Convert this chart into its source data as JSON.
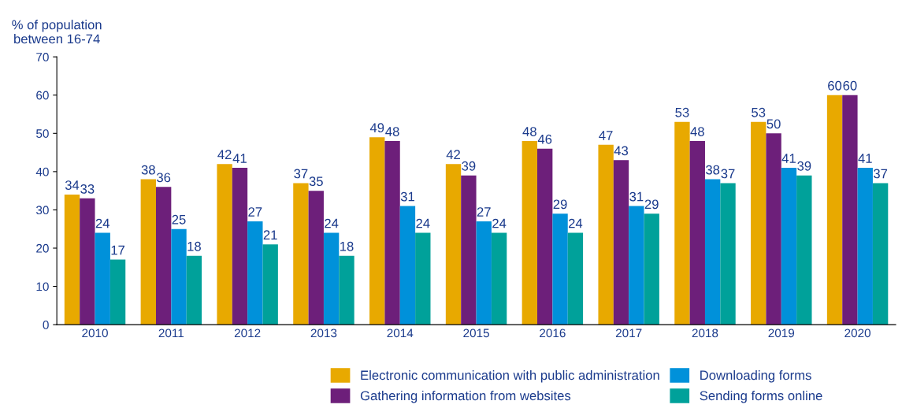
{
  "chart_data": {
    "type": "bar",
    "ylabel": "% of population\nbetween 16-74",
    "categories": [
      "2010",
      "2011",
      "2012",
      "2013",
      "2014",
      "2015",
      "2016",
      "2017",
      "2018",
      "2019",
      "2020"
    ],
    "series": [
      {
        "name": "Electronic communication with public administration",
        "color": "#e8a900",
        "values": [
          34,
          38,
          42,
          37,
          49,
          42,
          48,
          47,
          53,
          53,
          60
        ]
      },
      {
        "name": "Gathering information from websites",
        "color": "#6d1f7a",
        "values": [
          33,
          36,
          41,
          35,
          48,
          39,
          46,
          43,
          48,
          50,
          60
        ]
      },
      {
        "name": "Downloading forms",
        "color": "#0091da",
        "values": [
          24,
          25,
          27,
          24,
          31,
          27,
          29,
          31,
          38,
          41,
          41
        ]
      },
      {
        "name": "Sending forms online",
        "color": "#00a19a",
        "values": [
          17,
          18,
          21,
          18,
          24,
          24,
          24,
          29,
          37,
          39,
          37
        ]
      }
    ],
    "ylim": [
      0,
      70
    ],
    "yticks": [
      0,
      10,
      20,
      30,
      40,
      50,
      60,
      70
    ],
    "grid": false,
    "legend": "bottom",
    "data_labels": true
  }
}
